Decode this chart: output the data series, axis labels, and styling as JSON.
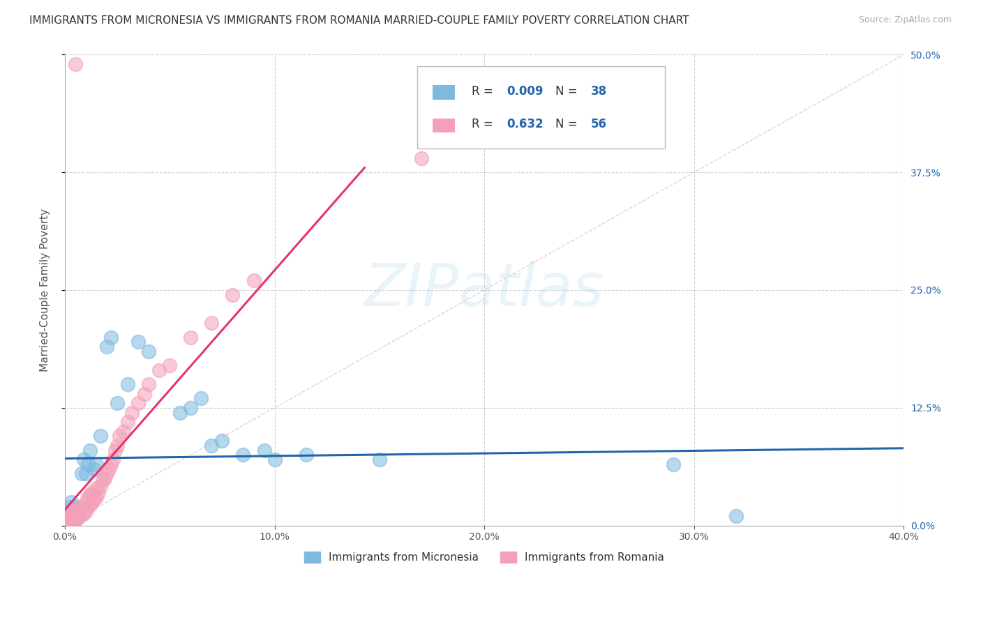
{
  "title": "IMMIGRANTS FROM MICRONESIA VS IMMIGRANTS FROM ROMANIA MARRIED-COUPLE FAMILY POVERTY CORRELATION CHART",
  "source": "Source: ZipAtlas.com",
  "ylabel": "Married-Couple Family Poverty",
  "xlim": [
    0.0,
    0.4
  ],
  "ylim": [
    0.0,
    0.5
  ],
  "xtick_labels": [
    "0.0%",
    "10.0%",
    "20.0%",
    "30.0%",
    "40.0%"
  ],
  "xtick_values": [
    0.0,
    0.1,
    0.2,
    0.3,
    0.4
  ],
  "ytick_labels_right": [
    "0.0%",
    "12.5%",
    "25.0%",
    "37.5%",
    "50.0%"
  ],
  "ytick_values": [
    0.0,
    0.125,
    0.25,
    0.375,
    0.5
  ],
  "color_micronesia": "#7fb9e0",
  "color_romania": "#f4a0b8",
  "color_trendline_micronesia": "#2166ac",
  "color_trendline_romania": "#e8336d",
  "legend_R_micronesia": "0.009",
  "legend_N_micronesia": "38",
  "legend_R_romania": "0.632",
  "legend_N_romania": "56",
  "legend_label_micronesia": "Immigrants from Micronesia",
  "legend_label_romania": "Immigrants from Romania",
  "watermark": "ZIPatlas",
  "micronesia_x": [
    0.001,
    0.002,
    0.002,
    0.003,
    0.003,
    0.004,
    0.004,
    0.005,
    0.005,
    0.006,
    0.006,
    0.007,
    0.008,
    0.009,
    0.01,
    0.011,
    0.012,
    0.014,
    0.015,
    0.017,
    0.02,
    0.022,
    0.025,
    0.03,
    0.035,
    0.04,
    0.055,
    0.06,
    0.065,
    0.07,
    0.075,
    0.085,
    0.095,
    0.1,
    0.115,
    0.15,
    0.29,
    0.32
  ],
  "micronesia_y": [
    0.005,
    0.008,
    0.02,
    0.01,
    0.025,
    0.005,
    0.015,
    0.01,
    0.02,
    0.008,
    0.012,
    0.018,
    0.055,
    0.07,
    0.055,
    0.065,
    0.08,
    0.06,
    0.065,
    0.095,
    0.19,
    0.2,
    0.13,
    0.15,
    0.195,
    0.185,
    0.12,
    0.125,
    0.135,
    0.085,
    0.09,
    0.075,
    0.08,
    0.07,
    0.075,
    0.07,
    0.065,
    0.01
  ],
  "romania_x": [
    0.001,
    0.001,
    0.002,
    0.002,
    0.003,
    0.003,
    0.003,
    0.004,
    0.004,
    0.005,
    0.005,
    0.005,
    0.006,
    0.006,
    0.007,
    0.007,
    0.008,
    0.008,
    0.009,
    0.009,
    0.01,
    0.01,
    0.011,
    0.011,
    0.012,
    0.012,
    0.013,
    0.013,
    0.014,
    0.015,
    0.015,
    0.016,
    0.017,
    0.018,
    0.019,
    0.02,
    0.021,
    0.022,
    0.023,
    0.024,
    0.025,
    0.026,
    0.028,
    0.03,
    0.032,
    0.035,
    0.038,
    0.04,
    0.045,
    0.05,
    0.06,
    0.07,
    0.08,
    0.09,
    0.17,
    0.005
  ],
  "romania_y": [
    0.002,
    0.008,
    0.004,
    0.01,
    0.005,
    0.01,
    0.015,
    0.008,
    0.012,
    0.005,
    0.01,
    0.015,
    0.008,
    0.015,
    0.01,
    0.018,
    0.012,
    0.02,
    0.012,
    0.02,
    0.015,
    0.025,
    0.02,
    0.03,
    0.022,
    0.032,
    0.025,
    0.035,
    0.028,
    0.03,
    0.04,
    0.035,
    0.042,
    0.048,
    0.05,
    0.055,
    0.06,
    0.065,
    0.07,
    0.08,
    0.085,
    0.095,
    0.1,
    0.11,
    0.12,
    0.13,
    0.14,
    0.15,
    0.165,
    0.17,
    0.2,
    0.215,
    0.245,
    0.26,
    0.39,
    0.49
  ],
  "diag_color": "#e8c0c8",
  "grid_color": "#cccccc",
  "background_color": "#ffffff",
  "title_fontsize": 11,
  "source_fontsize": 9,
  "axis_label_fontsize": 11,
  "tick_fontsize": 10,
  "legend_color_text": "#333333",
  "legend_color_value": "#2166ac"
}
